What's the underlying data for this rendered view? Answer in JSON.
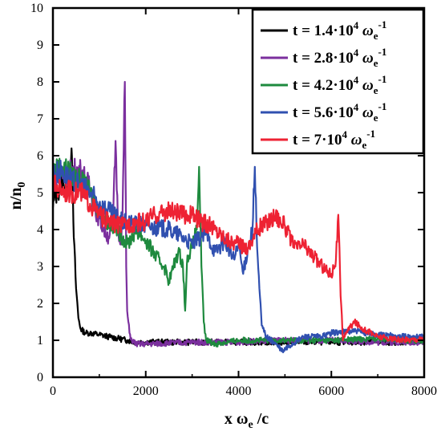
{
  "chart_data": {
    "type": "line",
    "xlabel": {
      "main": "x ω",
      "sub": "e",
      "tail": " /c"
    },
    "ylabel": {
      "main": "n/n",
      "sub": "0"
    },
    "xlim": [
      0,
      8000
    ],
    "ylim": [
      0,
      10
    ],
    "xticks": [
      0,
      2000,
      4000,
      6000,
      8000
    ],
    "yticks": [
      0,
      1,
      2,
      3,
      4,
      5,
      6,
      7,
      8,
      9,
      10
    ],
    "grid": false,
    "legend_position": "top-right",
    "series": [
      {
        "name": "t = 1.4·10^4 ω_e^-1",
        "label": {
          "main": "t = 1.4·10",
          "sup": "4",
          "mid": " ω",
          "sub": "e",
          "sup2": "-1"
        },
        "color": "#000000",
        "x": [
          0,
          50,
          100,
          200,
          300,
          350,
          400,
          420,
          450,
          500,
          550,
          600,
          700,
          800,
          1000,
          1200,
          1400,
          1600,
          1800,
          2000,
          3000,
          4000,
          5000,
          6000,
          7000,
          8000
        ],
        "y": [
          4.6,
          4.9,
          5.0,
          5.3,
          5.1,
          5.6,
          6.2,
          5.2,
          3.8,
          2.4,
          1.6,
          1.3,
          1.2,
          1.2,
          1.15,
          1.1,
          1.05,
          1.0,
          0.95,
          0.95,
          0.95,
          0.95,
          0.95,
          0.95,
          0.95,
          0.95
        ]
      },
      {
        "name": "t = 2.8·10^4 ω_e^-1",
        "label": {
          "main": "t = 2.8·10",
          "sup": "4",
          "mid": " ω",
          "sub": "e",
          "sup2": "-1"
        },
        "color": "#7B2F9E",
        "x": [
          0,
          200,
          400,
          600,
          700,
          800,
          900,
          1000,
          1100,
          1200,
          1300,
          1350,
          1400,
          1450,
          1500,
          1550,
          1580,
          1600,
          1650,
          1700,
          1800,
          2000,
          3000,
          4000,
          5000,
          6000,
          7000,
          8000
        ],
        "y": [
          5.3,
          5.5,
          5.6,
          5.6,
          5.4,
          5.1,
          4.6,
          4.3,
          4.0,
          3.8,
          4.4,
          6.4,
          4.2,
          3.6,
          4.4,
          8.0,
          3.0,
          1.8,
          1.2,
          1.0,
          0.9,
          0.9,
          0.95,
          0.95,
          1.0,
          1.0,
          0.95,
          0.95
        ]
      },
      {
        "name": "t = 4.2·10^4 ω_e^-1",
        "label": {
          "main": "t = 4.2·10",
          "sup": "4",
          "mid": " ω",
          "sub": "e",
          "sup2": "-1"
        },
        "color": "#1E8A3E",
        "x": [
          0,
          200,
          400,
          600,
          800,
          1000,
          1200,
          1400,
          1600,
          1800,
          2000,
          2200,
          2400,
          2500,
          2600,
          2700,
          2800,
          2850,
          2900,
          3000,
          3100,
          3150,
          3200,
          3250,
          3300,
          3500,
          4000,
          5000,
          6000,
          7000,
          8000
        ],
        "y": [
          5.6,
          5.7,
          5.5,
          5.3,
          5.0,
          4.5,
          4.2,
          4.0,
          3.6,
          4.0,
          3.7,
          3.3,
          3.0,
          2.6,
          3.0,
          3.4,
          3.1,
          1.8,
          3.3,
          3.5,
          4.0,
          5.7,
          3.0,
          1.5,
          1.0,
          0.9,
          1.0,
          1.0,
          1.0,
          1.05,
          1.0
        ]
      },
      {
        "name": "t = 5.6·10^4 ω_e^-1",
        "label": {
          "main": "t = 5.6·10",
          "sup": "4",
          "mid": " ω",
          "sub": "e",
          "sup2": "-1"
        },
        "color": "#3050B0",
        "x": [
          0,
          200,
          400,
          600,
          800,
          1000,
          1500,
          2000,
          2500,
          2800,
          3000,
          3300,
          3500,
          3700,
          3900,
          4000,
          4100,
          4200,
          4300,
          4350,
          4400,
          4450,
          4500,
          4600,
          4800,
          4950,
          5100,
          5400,
          5800,
          6000,
          6500,
          7000,
          7500,
          8000
        ],
        "y": [
          5.5,
          5.6,
          5.3,
          5.2,
          5.0,
          4.7,
          4.2,
          4.1,
          4.0,
          3.8,
          3.6,
          3.9,
          3.4,
          3.7,
          3.2,
          3.6,
          2.8,
          3.5,
          4.0,
          5.7,
          3.5,
          2.4,
          1.4,
          1.1,
          0.9,
          0.7,
          0.85,
          1.1,
          1.1,
          1.2,
          1.25,
          1.15,
          1.1,
          1.1
        ]
      },
      {
        "name": "t = 7·10^4 ω_e^-1",
        "label": {
          "main": "t = 7·10",
          "sup": "4",
          "mid": " ω",
          "sub": "e",
          "sup2": "-1"
        },
        "color": "#EE2233",
        "x": [
          0,
          200,
          400,
          600,
          800,
          1000,
          1200,
          1500,
          1800,
          2000,
          2200,
          2500,
          2800,
          3000,
          3200,
          3400,
          3600,
          3800,
          4000,
          4200,
          4400,
          4600,
          4800,
          5000,
          5200,
          5400,
          5600,
          5800,
          6000,
          6100,
          6150,
          6200,
          6250,
          6300,
          6500,
          6700,
          7000,
          7500,
          8000
        ],
        "y": [
          5.2,
          5.1,
          5.0,
          5.0,
          4.7,
          4.4,
          4.2,
          4.1,
          4.2,
          4.2,
          4.4,
          4.5,
          4.4,
          4.4,
          4.2,
          4.1,
          3.9,
          3.7,
          3.6,
          3.5,
          4.0,
          4.2,
          4.4,
          4.1,
          3.5,
          3.6,
          3.3,
          3.0,
          2.8,
          3.2,
          4.4,
          2.2,
          1.0,
          1.2,
          1.5,
          1.3,
          1.1,
          1.0,
          1.05
        ]
      }
    ]
  }
}
